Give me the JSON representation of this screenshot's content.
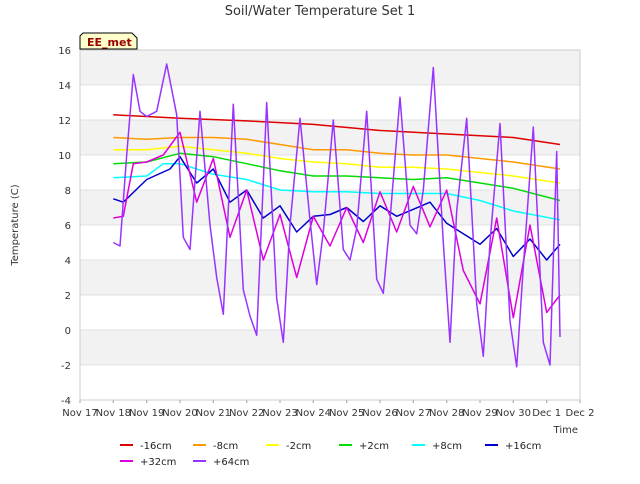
{
  "chart_data": {
    "type": "line",
    "title": "Soil/Water Temperature Set 1",
    "site_badge": "EE_met",
    "xlabel": "Time",
    "ylabel": "Temperature (C)",
    "x_ticks": [
      "Nov 17",
      "Nov 18",
      "Nov 19",
      "Nov 20",
      "Nov 21",
      "Nov 22",
      "Nov 23",
      "Nov 24",
      "Nov 25",
      "Nov 26",
      "Nov 27",
      "Nov 28",
      "Nov 29",
      "Nov 30",
      "Dec 1",
      "Dec 2"
    ],
    "xlim": [
      0,
      15
    ],
    "ylim": [
      -4,
      16
    ],
    "y_ticks": [
      -4,
      -2,
      0,
      2,
      4,
      6,
      8,
      10,
      12,
      14,
      16
    ],
    "grid": true,
    "legend_position": "bottom",
    "series": [
      {
        "name": "-16cm",
        "color": "#dd0000",
        "x": [
          1.0,
          3.0,
          5.0,
          7.0,
          9.0,
          11.0,
          13.0,
          14.4
        ],
        "y": [
          12.3,
          12.1,
          11.95,
          11.75,
          11.4,
          11.2,
          11.0,
          10.6
        ]
      },
      {
        "name": "-8cm",
        "color": "#ff9900",
        "x": [
          1.0,
          2.0,
          3.0,
          4.0,
          5.0,
          6.0,
          7.0,
          8.0,
          9.0,
          10.0,
          11.0,
          12.0,
          13.0,
          14.4
        ],
        "y": [
          11.0,
          10.9,
          11.0,
          11.0,
          10.9,
          10.6,
          10.3,
          10.3,
          10.1,
          10.0,
          10.0,
          9.8,
          9.6,
          9.2
        ]
      },
      {
        "name": "-2cm",
        "color": "#ffff00",
        "x": [
          1.0,
          2.0,
          3.0,
          4.0,
          5.0,
          6.0,
          7.0,
          8.0,
          9.0,
          10.0,
          11.0,
          12.0,
          13.0,
          14.4
        ],
        "y": [
          10.3,
          10.3,
          10.5,
          10.3,
          10.1,
          9.8,
          9.6,
          9.5,
          9.3,
          9.3,
          9.2,
          9.0,
          8.8,
          8.4
        ]
      },
      {
        "name": "+2cm",
        "color": "#00dd00",
        "x": [
          1.0,
          2.0,
          3.0,
          4.0,
          5.0,
          6.0,
          7.0,
          8.0,
          9.0,
          10.0,
          11.0,
          12.0,
          13.0,
          14.4
        ],
        "y": [
          9.5,
          9.6,
          10.1,
          9.9,
          9.5,
          9.1,
          8.8,
          8.8,
          8.7,
          8.6,
          8.7,
          8.4,
          8.1,
          7.4
        ]
      },
      {
        "name": "+8cm",
        "color": "#00ffff",
        "x": [
          1.0,
          2.0,
          2.5,
          3.0,
          4.0,
          5.0,
          6.0,
          7.0,
          8.0,
          9.0,
          10.0,
          11.0,
          12.0,
          13.0,
          14.4
        ],
        "y": [
          8.7,
          8.8,
          9.5,
          9.5,
          8.9,
          8.6,
          8.0,
          7.9,
          7.9,
          7.8,
          7.8,
          7.8,
          7.4,
          6.8,
          6.3
        ]
      },
      {
        "name": "+16cm",
        "color": "#0000cc",
        "x": [
          1.0,
          1.3,
          2.0,
          2.7,
          3.0,
          3.5,
          4.0,
          4.5,
          5.0,
          5.5,
          6.0,
          6.5,
          7.0,
          7.5,
          8.0,
          8.5,
          9.0,
          9.5,
          10.0,
          10.5,
          11.0,
          11.5,
          12.0,
          12.5,
          13.0,
          13.5,
          14.0,
          14.4
        ],
        "y": [
          7.5,
          7.3,
          8.6,
          9.2,
          9.9,
          8.4,
          9.2,
          7.3,
          8.0,
          6.4,
          7.1,
          5.6,
          6.5,
          6.6,
          7.0,
          6.2,
          7.1,
          6.5,
          6.9,
          7.3,
          6.1,
          5.5,
          4.9,
          5.8,
          4.2,
          5.2,
          4.0,
          4.9
        ]
      },
      {
        "name": "+32cm",
        "color": "#dd00dd",
        "x": [
          1.0,
          1.3,
          1.6,
          2.0,
          2.5,
          3.0,
          3.5,
          4.0,
          4.5,
          5.0,
          5.5,
          6.0,
          6.5,
          7.0,
          7.5,
          8.0,
          8.5,
          9.0,
          9.5,
          10.0,
          10.5,
          11.0,
          11.5,
          12.0,
          12.5,
          13.0,
          13.5,
          14.0,
          14.4
        ],
        "y": [
          6.4,
          6.5,
          9.5,
          9.6,
          10.0,
          11.3,
          7.3,
          9.8,
          5.3,
          8.0,
          4.0,
          6.6,
          3.0,
          6.5,
          4.8,
          7.0,
          5.0,
          7.9,
          5.6,
          8.2,
          5.9,
          8.0,
          3.4,
          1.5,
          6.4,
          0.7,
          6.0,
          1.0,
          2.0
        ]
      },
      {
        "name": "+64cm",
        "color": "#9933ff",
        "x": [
          1.0,
          1.2,
          1.4,
          1.6,
          1.8,
          2.0,
          2.3,
          2.6,
          2.9,
          3.1,
          3.3,
          3.6,
          3.9,
          4.1,
          4.3,
          4.6,
          4.9,
          5.1,
          5.3,
          5.6,
          5.9,
          6.1,
          6.3,
          6.6,
          6.9,
          7.1,
          7.3,
          7.6,
          7.9,
          8.1,
          8.3,
          8.6,
          8.9,
          9.1,
          9.3,
          9.6,
          9.9,
          10.1,
          10.3,
          10.6,
          10.9,
          11.1,
          11.3,
          11.6,
          11.9,
          12.1,
          12.3,
          12.6,
          12.9,
          13.1,
          13.3,
          13.6,
          13.9,
          14.1,
          14.3,
          14.4
        ],
        "y": [
          5.0,
          4.8,
          10.0,
          14.6,
          12.5,
          12.2,
          12.5,
          15.2,
          12.3,
          5.3,
          4.6,
          12.5,
          6.0,
          3.0,
          0.9,
          12.9,
          2.3,
          0.8,
          -0.3,
          13.0,
          1.8,
          -0.7,
          6.0,
          12.1,
          6.3,
          2.6,
          5.6,
          12.0,
          4.6,
          4.0,
          5.8,
          12.5,
          2.9,
          2.1,
          6.3,
          13.3,
          6.0,
          5.5,
          8.0,
          15.0,
          5.0,
          -0.7,
          6.8,
          12.1,
          1.5,
          -1.5,
          5.0,
          11.8,
          0.5,
          -2.1,
          3.6,
          11.6,
          -0.7,
          -2.0,
          10.2,
          -0.4
        ]
      }
    ]
  }
}
